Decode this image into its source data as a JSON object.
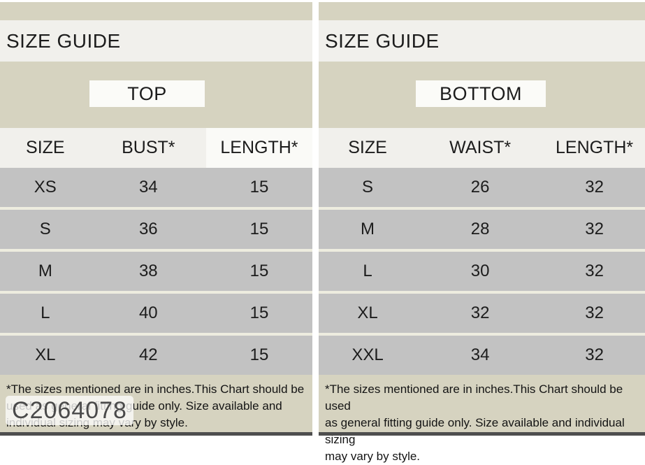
{
  "colors": {
    "beige_band": "#d6d3c0",
    "light_band": "#f1f0ec",
    "row_gray": "#c2c2c2",
    "row_separator": "#edecdf",
    "white_box": "#fbfbf8",
    "text_dark": "#1c1c1c",
    "bottom_strip": "#4e4e4e",
    "watermark_bg": "rgba(253,253,251,0.78)",
    "watermark_text": "#4a4a4a",
    "page_background": "#ffffff"
  },
  "watermark": {
    "label": "C2064078"
  },
  "panels": [
    {
      "title": "SIZE GUIDE",
      "category": "TOP",
      "columns": [
        "SIZE",
        "BUST*",
        "LENGTH*"
      ],
      "rows": [
        [
          "XS",
          "34",
          "15"
        ],
        [
          "S",
          "36",
          "15"
        ],
        [
          "M",
          "38",
          "15"
        ],
        [
          "L",
          "40",
          "15"
        ],
        [
          "XL",
          "42",
          "15"
        ]
      ],
      "footnote_lines": [
        "*The sizes mentioned are in inches.This Chart should be",
        "used as general fitting guide only. Size available and",
        "individual sizing may vary by style."
      ]
    },
    {
      "title": "SIZE GUIDE",
      "category": "BOTTOM",
      "columns": [
        "SIZE",
        "WAIST*",
        "LENGTH*"
      ],
      "rows": [
        [
          "S",
          "26",
          "32"
        ],
        [
          "M",
          "28",
          "32"
        ],
        [
          "L",
          "30",
          "32"
        ],
        [
          "XL",
          "32",
          "32"
        ],
        [
          "XXL",
          "34",
          "32"
        ]
      ],
      "footnote_lines": [
        "*The sizes mentioned are in inches.This Chart should be used",
        "as general fitting guide only. Size available and individual sizing",
        "may vary by style."
      ]
    }
  ],
  "chart_data": [
    {
      "type": "table",
      "title": "SIZE GUIDE - TOP",
      "columns": [
        "SIZE",
        "BUST*",
        "LENGTH*"
      ],
      "rows": [
        [
          "XS",
          34,
          15
        ],
        [
          "S",
          36,
          15
        ],
        [
          "M",
          38,
          15
        ],
        [
          "L",
          40,
          15
        ],
        [
          "XL",
          42,
          15
        ]
      ],
      "units": "inches",
      "note": "*The sizes mentioned are in inches.This Chart should be used as general fitting guide only. Size available and individual sizing may vary by style."
    },
    {
      "type": "table",
      "title": "SIZE GUIDE - BOTTOM",
      "columns": [
        "SIZE",
        "WAIST*",
        "LENGTH*"
      ],
      "rows": [
        [
          "S",
          26,
          32
        ],
        [
          "M",
          28,
          32
        ],
        [
          "L",
          30,
          32
        ],
        [
          "XL",
          32,
          32
        ],
        [
          "XXL",
          34,
          32
        ]
      ],
      "units": "inches",
      "note": "*The sizes mentioned are in inches.This Chart should be used as general fitting guide only. Size available and individual sizing may vary by style."
    }
  ]
}
